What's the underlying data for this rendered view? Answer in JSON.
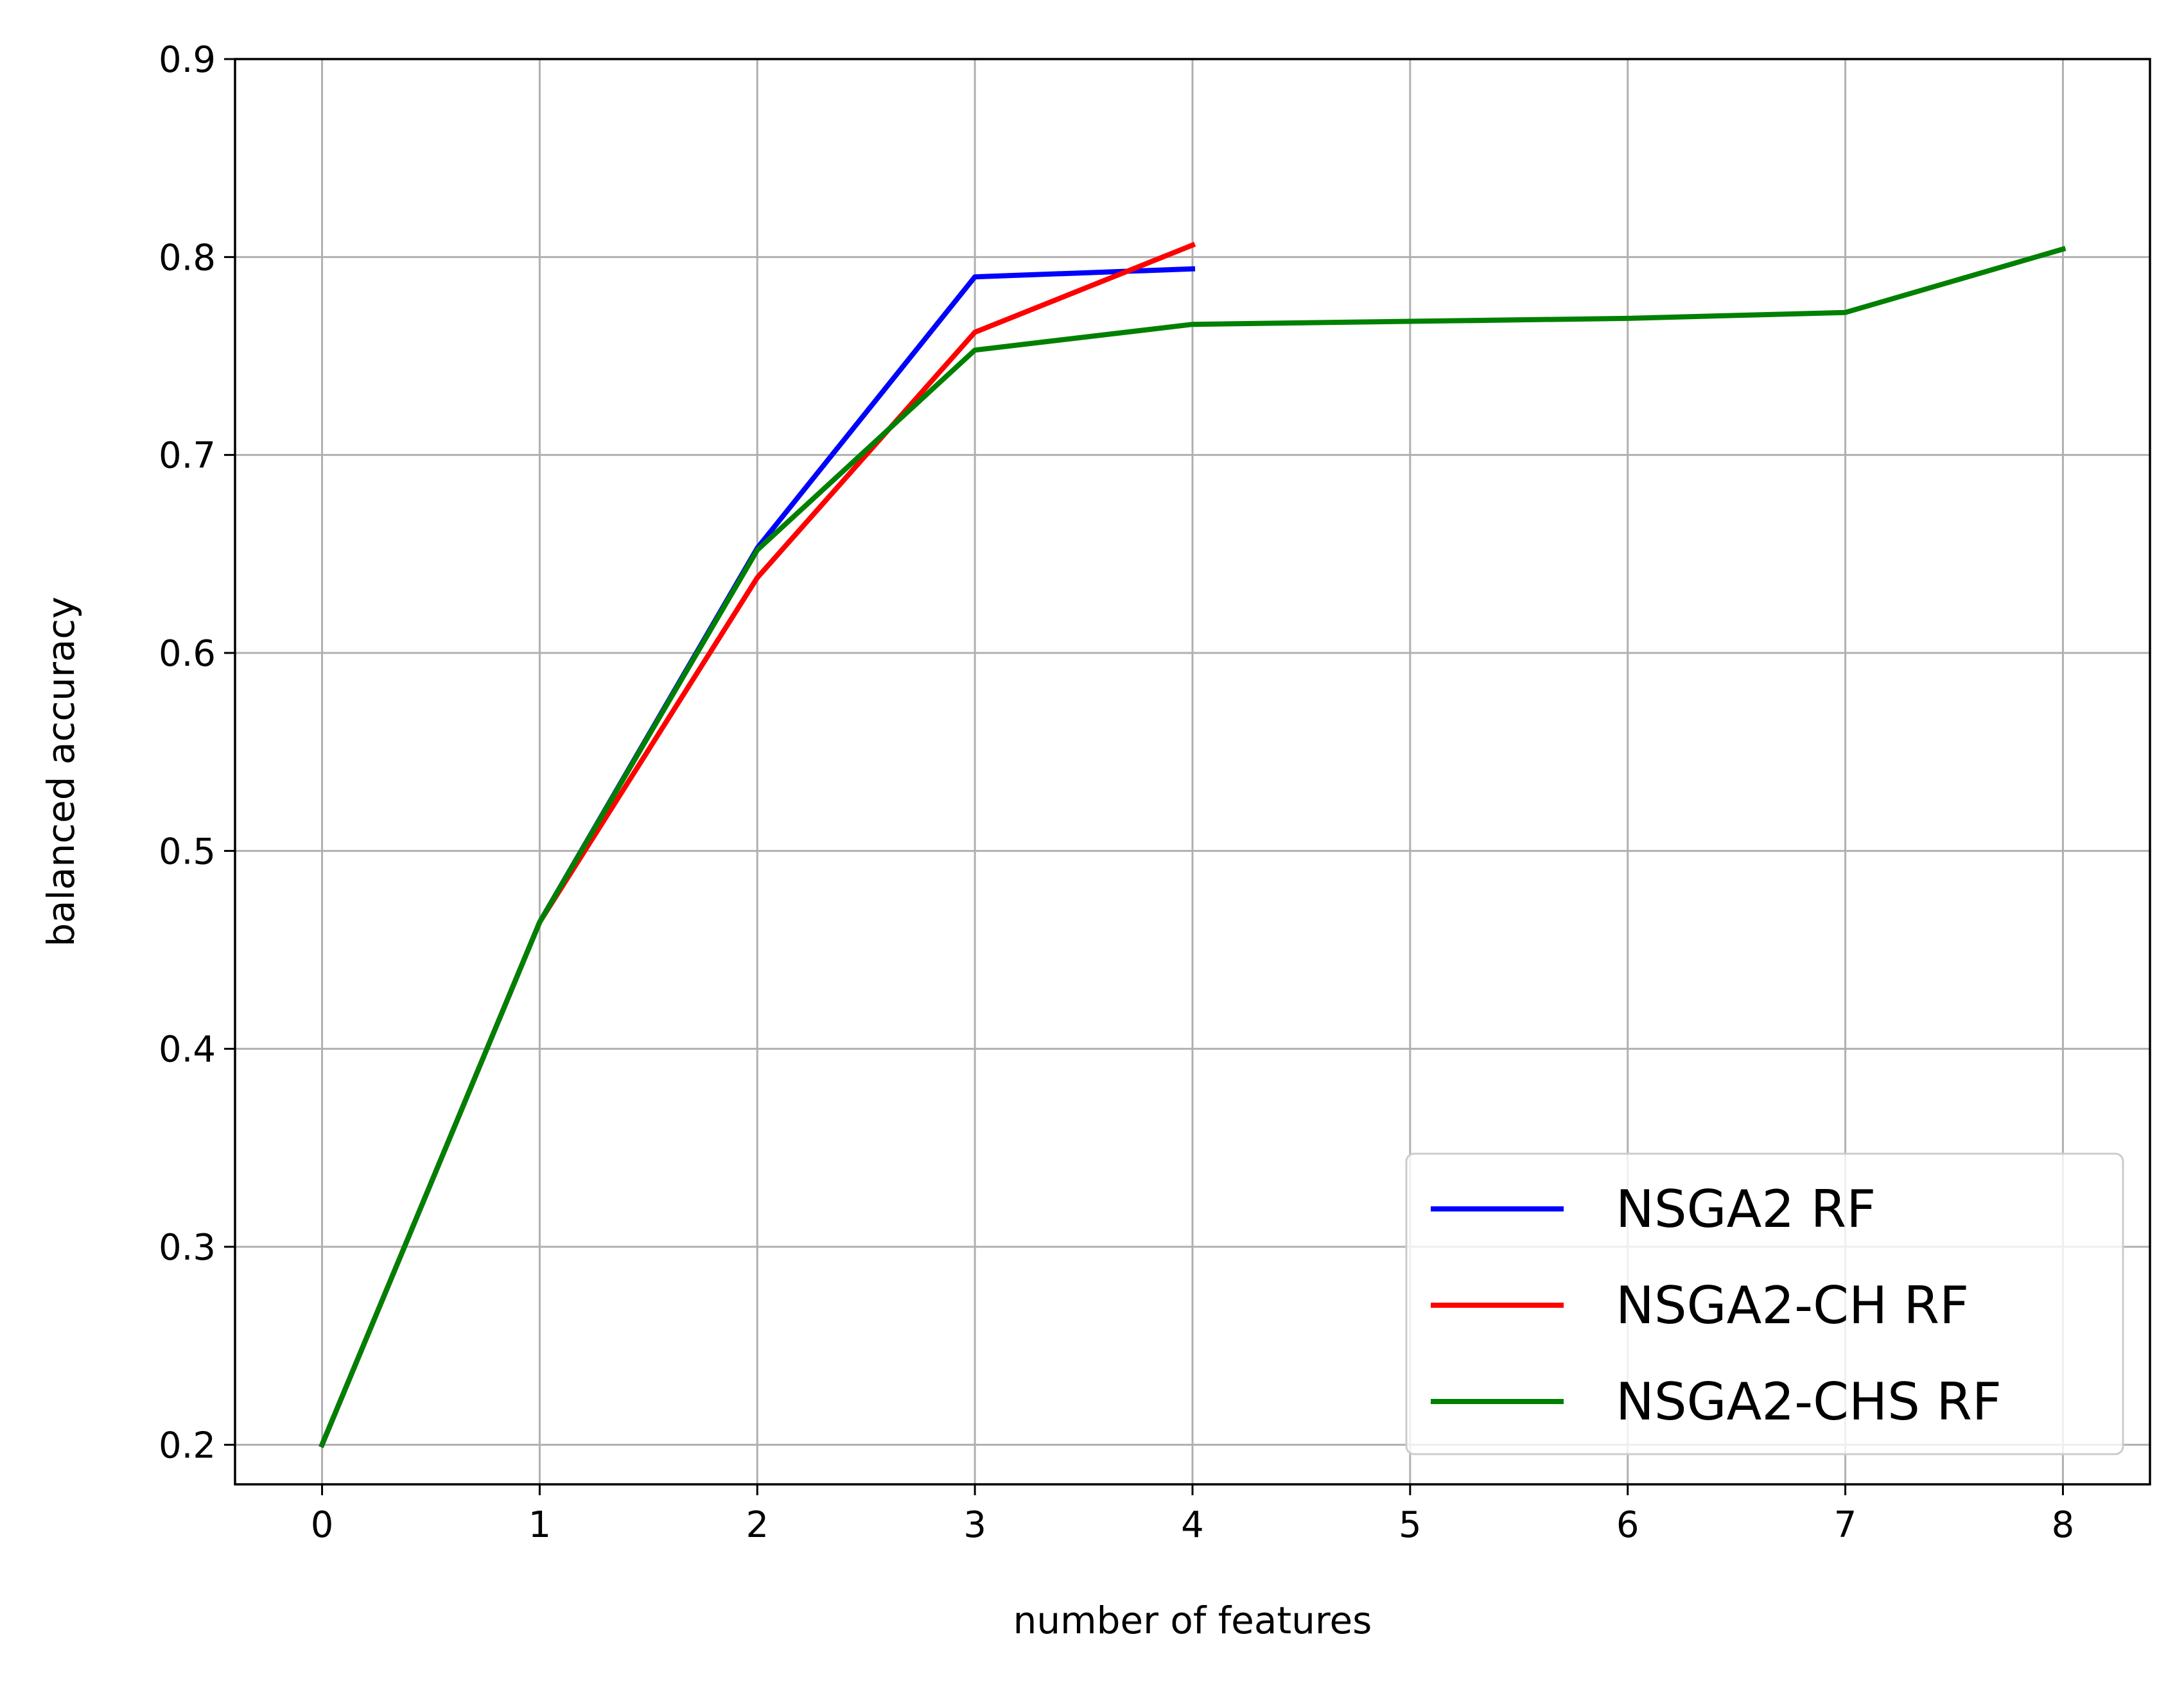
{
  "chart_data": {
    "type": "line",
    "title": "",
    "xlabel": "number of features",
    "ylabel": "balanced accuracy",
    "xlim": [
      -0.4,
      8.4
    ],
    "ylim": [
      0.18,
      0.9
    ],
    "xticks": [
      0,
      1,
      2,
      3,
      4,
      5,
      6,
      7,
      8
    ],
    "yticks": [
      0.2,
      0.3,
      0.4,
      0.5,
      0.6,
      0.7,
      0.8,
      0.9
    ],
    "xtick_labels": [
      "0",
      "1",
      "2",
      "3",
      "4",
      "5",
      "6",
      "7",
      "8"
    ],
    "ytick_labels": [
      "0.2",
      "0.3",
      "0.4",
      "0.5",
      "0.6",
      "0.7",
      "0.8",
      "0.9"
    ],
    "grid": true,
    "legend_position": "lower-right",
    "series": [
      {
        "name": "NSGA2 RF",
        "color": "#0000ff",
        "x": [
          0,
          1,
          2,
          3,
          4
        ],
        "y": [
          0.2,
          0.464,
          0.653,
          0.79,
          0.794
        ]
      },
      {
        "name": "NSGA2-CH RF",
        "color": "#ff0000",
        "x": [
          0,
          1,
          2,
          3,
          4
        ],
        "y": [
          0.2,
          0.464,
          0.638,
          0.762,
          0.806
        ]
      },
      {
        "name": "NSGA2-CHS RF",
        "color": "#008000",
        "x": [
          0,
          1,
          2,
          3,
          4,
          6,
          7,
          8
        ],
        "y": [
          0.2,
          0.464,
          0.652,
          0.753,
          0.766,
          0.769,
          0.772,
          0.804
        ]
      }
    ]
  }
}
